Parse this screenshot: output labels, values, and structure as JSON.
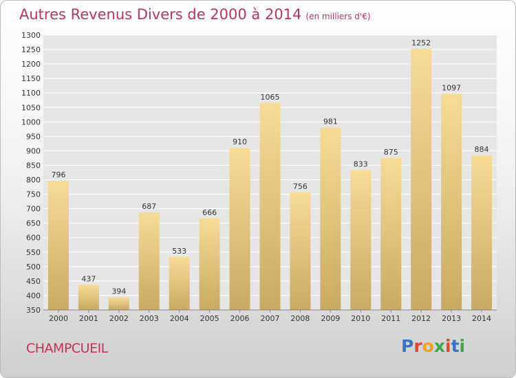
{
  "header": {
    "title": "Autres Revenus Divers de 2000 à 2014",
    "unit": "(en milliers d'€)"
  },
  "footer": {
    "location": "CHAMPCUEIL",
    "logo_text": "Proxiti",
    "logo_colors": [
      "#3a74c4",
      "#e5452b",
      "#f2a21b",
      "#3aa845",
      "#e5452b",
      "#3a74c4",
      "#3aa845"
    ]
  },
  "chart_data": {
    "type": "bar",
    "title": "Autres Revenus Divers de 2000 à 2014",
    "subtitle": "(en milliers d'€)",
    "xlabel": "",
    "ylabel": "",
    "categories": [
      "2000",
      "2001",
      "2002",
      "2003",
      "2004",
      "2005",
      "2006",
      "2007",
      "2008",
      "2009",
      "2010",
      "2011",
      "2012",
      "2013",
      "2014"
    ],
    "values": [
      796,
      437,
      394,
      687,
      533,
      666,
      910,
      1065,
      756,
      981,
      833,
      875,
      1252,
      1097,
      884
    ],
    "ylim": [
      350,
      1300
    ],
    "ytick_step": 50,
    "grid": true,
    "bar_color_top": "#f7dc95",
    "bar_color_bottom": "#c8aa62"
  }
}
